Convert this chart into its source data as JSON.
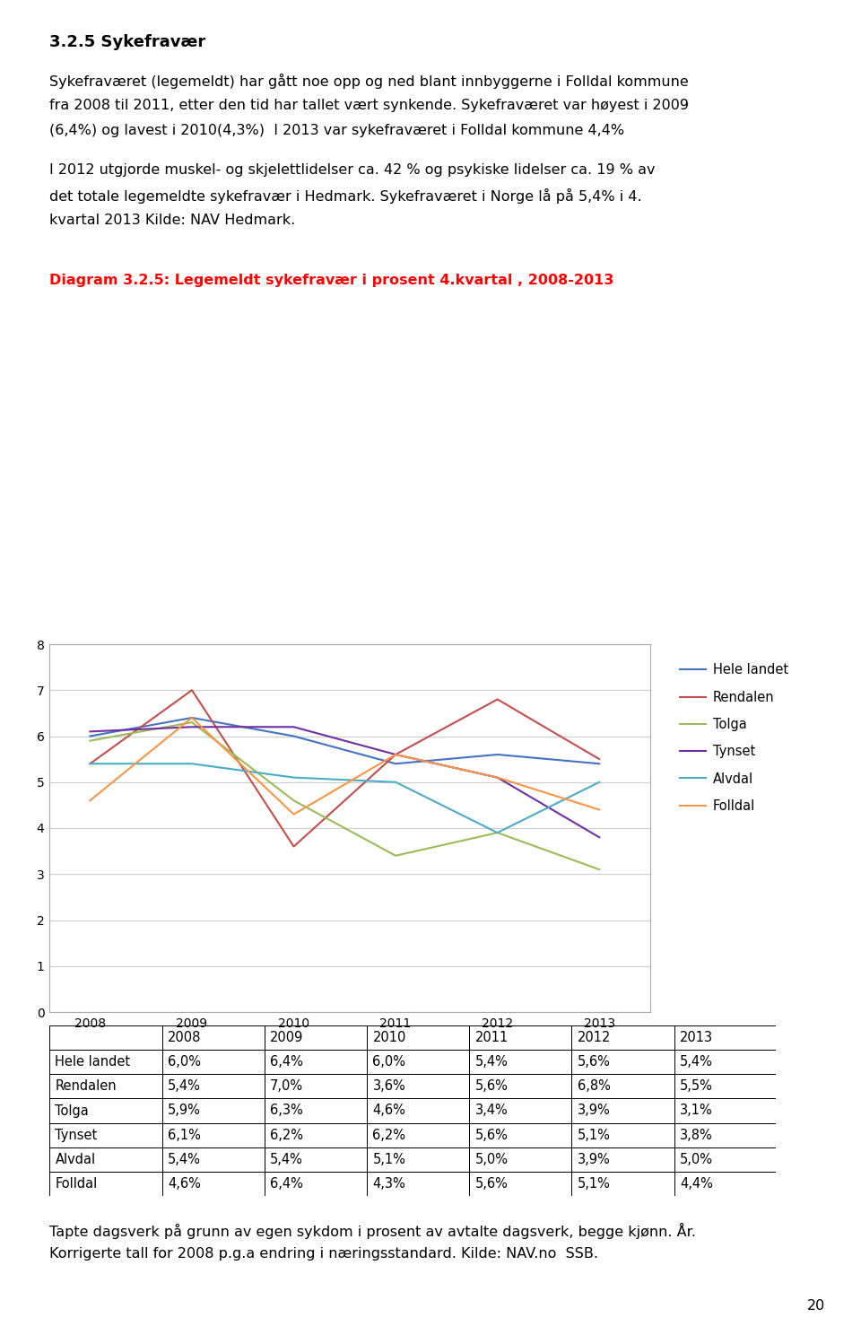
{
  "title_section": "3.2.5 Sykefravær",
  "body_text1_line1": "Sykefraværet (legemeldt) har gått noe opp og ned blant innbyggerne i Folldal kommune",
  "body_text1_line2": "fra 2008 til 2011, etter den tid har tallet vært synkende. Sykefraværet var høyest i 2009",
  "body_text1_line3": "(6,4%) og lavest i 2010(4,3%)  I 2013 var sykefraværet i Folldal kommune 4,4%",
  "body_text2_line1": "I 2012 utgjorde muskel- og skjelettlidelser ca. 42 % og psykiske lidelser ca. 19 % av",
  "body_text2_line2": "det totale legemeldte sykefravær i Hedmark. Sykefraværet i Norge lå på 5,4% i 4.",
  "body_text2_line3": "kvartal 2013 Kilde: NAV Hedmark.",
  "diagram_title": "Diagram 3.2.5: Legemeldt sykefravær i prosent 4.kvartal , 2008-2013",
  "years": [
    2008,
    2009,
    2010,
    2011,
    2012,
    2013
  ],
  "series": {
    "Hele landet": {
      "values": [
        6.0,
        6.4,
        6.0,
        5.4,
        5.6,
        5.4
      ],
      "color": "#4472C4"
    },
    "Rendalen": {
      "values": [
        5.4,
        7.0,
        3.6,
        5.6,
        6.8,
        5.5
      ],
      "color": "#C0504D"
    },
    "Tolga": {
      "values": [
        5.9,
        6.3,
        4.6,
        3.4,
        3.9,
        3.1
      ],
      "color": "#9BBB59"
    },
    "Tynset": {
      "values": [
        6.1,
        6.2,
        6.2,
        5.6,
        5.1,
        3.8
      ],
      "color": "#7030A0"
    },
    "Alvdal": {
      "values": [
        5.4,
        5.4,
        5.1,
        5.0,
        3.9,
        5.0
      ],
      "color": "#4BACC6"
    },
    "Folldal": {
      "values": [
        4.6,
        6.4,
        4.3,
        5.6,
        5.1,
        4.4
      ],
      "color": "#F79646"
    }
  },
  "table_data": {
    "headers": [
      "",
      "2008",
      "2009",
      "2010",
      "2011",
      "2012",
      "2013"
    ],
    "rows": [
      [
        "Hele landet",
        "6,0%",
        "6,4%",
        "6,0%",
        "5,4%",
        "5,6%",
        "5,4%"
      ],
      [
        "Rendalen",
        "5,4%",
        "7,0%",
        "3,6%",
        "5,6%",
        "6,8%",
        "5,5%"
      ],
      [
        "Tolga",
        "5,9%",
        "6,3%",
        "4,6%",
        "3,4%",
        "3,9%",
        "3,1%"
      ],
      [
        "Tynset",
        "6,1%",
        "6,2%",
        "6,2%",
        "5,6%",
        "5,1%",
        "3,8%"
      ],
      [
        "Alvdal",
        "5,4%",
        "5,4%",
        "5,1%",
        "5,0%",
        "3,9%",
        "5,0%"
      ],
      [
        "Folldal",
        "4,6%",
        "6,4%",
        "4,3%",
        "5,6%",
        "5,1%",
        "4,4%"
      ]
    ]
  },
  "footer_text_line1": "Tapte dagsverk på grunn av egen sykdom i prosent av avtalte dagsverk, begge kjønn. År.",
  "footer_text_line2": "Korrigerte tall for 2008 p.g.a endring i næringsstandard. Kilde: NAV.no  SSB.",
  "page_number": "20",
  "ylim": [
    0,
    8
  ],
  "yticks": [
    0,
    1,
    2,
    3,
    4,
    5,
    6,
    7,
    8
  ]
}
